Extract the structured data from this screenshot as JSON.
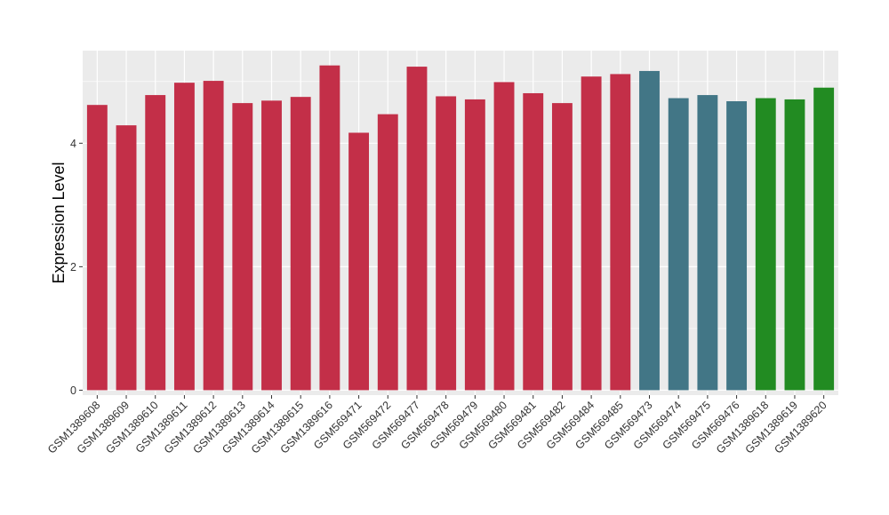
{
  "chart_data": {
    "type": "bar",
    "title": "",
    "xlabel": "",
    "ylabel": "Expression Level",
    "ylim": [
      -0.08,
      5.5
    ],
    "yticks": [
      0,
      2,
      4
    ],
    "grid": true,
    "legend": "none",
    "categories": [
      "GSM1389608",
      "GSM1389609",
      "GSM1389610",
      "GSM1389611",
      "GSM1389612",
      "GSM1389613",
      "GSM1389614",
      "GSM1389615",
      "GSM1389616",
      "GSM569471",
      "GSM569472",
      "GSM569477",
      "GSM569478",
      "GSM569479",
      "GSM569480",
      "GSM569481",
      "GSM569482",
      "GSM569484",
      "GSM569485",
      "GSM569473",
      "GSM569474",
      "GSM569475",
      "GSM569476",
      "GSM1389618",
      "GSM1389619",
      "GSM1389620"
    ],
    "values": [
      4.62,
      4.29,
      4.78,
      4.98,
      5.01,
      4.65,
      4.69,
      4.75,
      5.26,
      4.17,
      4.47,
      5.24,
      4.76,
      4.71,
      4.99,
      4.81,
      4.65,
      5.08,
      5.12,
      5.17,
      4.73,
      4.78,
      4.68,
      4.73,
      4.71,
      4.9
    ],
    "bar_colors": [
      "#c32f48",
      "#c32f48",
      "#c32f48",
      "#c32f48",
      "#c32f48",
      "#c32f48",
      "#c32f48",
      "#c32f48",
      "#c32f48",
      "#c32f48",
      "#c32f48",
      "#c32f48",
      "#c32f48",
      "#c32f48",
      "#c32f48",
      "#c32f48",
      "#c32f48",
      "#c32f48",
      "#c32f48",
      "#427686",
      "#427686",
      "#427686",
      "#427686",
      "#228b22",
      "#228b22",
      "#228b22"
    ],
    "panel_color": "#ebebeb",
    "grid_color": "#ffffff"
  }
}
